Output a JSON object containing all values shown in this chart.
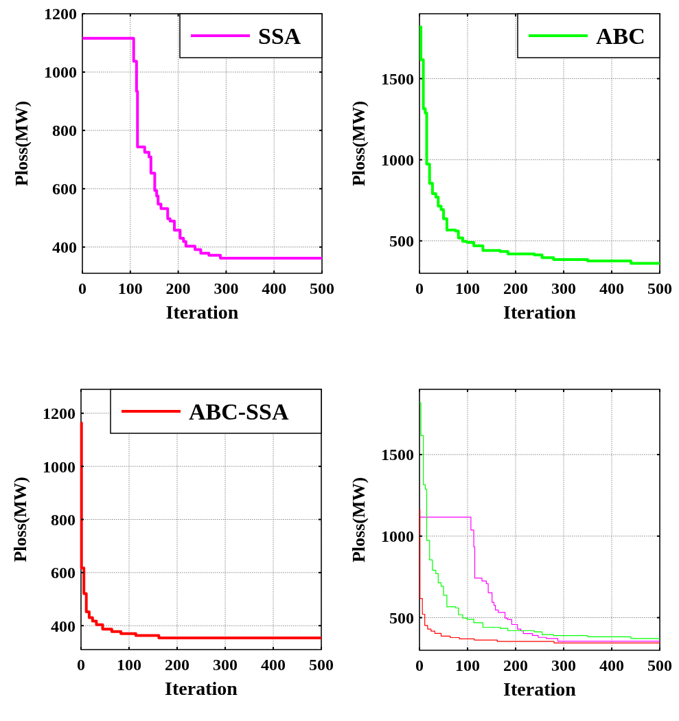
{
  "chart_data": [
    {
      "type": "step",
      "xlabel": "Iteration",
      "ylabel": "Ploss(MW)",
      "xlim": [
        0,
        500
      ],
      "ylim": [
        310,
        1200
      ],
      "xticks": [
        0,
        100,
        200,
        300,
        400,
        500
      ],
      "yticks": [
        400,
        600,
        800,
        1000,
        1200
      ],
      "grid": true,
      "legend": "top right",
      "series": [
        {
          "name": "SSA",
          "color": "#ff00ff",
          "x": [
            0,
            107,
            113,
            115,
            115,
            130,
            139,
            143,
            151,
            155,
            158,
            164,
            178,
            183,
            192,
            204,
            211,
            216,
            226,
            235,
            247,
            264,
            288,
            500
          ],
          "values": [
            1116,
            1037,
            934,
            899,
            743,
            725,
            709,
            653,
            594,
            575,
            547,
            532,
            497,
            489,
            458,
            430,
            419,
            403,
            403,
            391,
            379,
            372,
            362,
            362
          ]
        }
      ]
    },
    {
      "type": "step",
      "xlabel": "Iteration",
      "ylabel": "Ploss(MW)",
      "xlim": [
        0,
        500
      ],
      "ylim": [
        300,
        1900
      ],
      "xticks": [
        0,
        100,
        200,
        300,
        400,
        500
      ],
      "yticks": [
        500,
        1000,
        1500
      ],
      "grid": true,
      "legend": "top right",
      "series": [
        {
          "name": "ABC",
          "color": "#00ff00",
          "x": [
            0,
            3,
            8,
            8,
            12,
            15,
            21,
            21,
            27,
            34,
            39,
            45,
            50,
            57,
            75,
            81,
            90,
            99,
            113,
            132,
            168,
            184,
            239,
            255,
            279,
            350,
            440,
            500
          ],
          "values": [
            1819,
            1616,
            1500,
            1315,
            1288,
            973,
            945,
            854,
            791,
            770,
            714,
            693,
            637,
            567,
            560,
            518,
            497,
            490,
            469,
            441,
            434,
            420,
            413,
            396,
            385,
            376,
            361,
            361
          ]
        }
      ]
    },
    {
      "type": "step",
      "xlabel": "Iteration",
      "ylabel": "Ploss(MW)",
      "xlim": [
        0,
        500
      ],
      "ylim": [
        310,
        1290
      ],
      "xticks": [
        0,
        100,
        200,
        300,
        400,
        500
      ],
      "yticks": [
        400,
        600,
        800,
        1000,
        1200
      ],
      "grid": true,
      "legend": "top right",
      "series": [
        {
          "name": "ABC-SSA",
          "color": "#ff0000",
          "x": [
            0,
            1,
            6,
            6,
            11,
            17,
            24,
            32,
            45,
            64,
            83,
            114,
            162,
            500
          ],
          "values": [
            1164,
            617,
            600,
            521,
            452,
            430,
            417,
            404,
            387,
            378,
            370,
            363,
            354,
            354
          ]
        }
      ]
    },
    {
      "type": "step",
      "xlabel": "Iteration",
      "ylabel": "Ploss(MW)",
      "xlim": [
        0,
        500
      ],
      "ylim": [
        300,
        1900
      ],
      "xticks": [
        0,
        100,
        200,
        300,
        400,
        500
      ],
      "yticks": [
        500,
        1000,
        1500
      ],
      "grid": true,
      "series": [
        {
          "color": "#ff00ff",
          "x": [
            0,
            107,
            113,
            115,
            115,
            130,
            139,
            143,
            151,
            155,
            158,
            164,
            178,
            183,
            192,
            204,
            211,
            216,
            226,
            235,
            247,
            264,
            288,
            500
          ],
          "values": [
            1116,
            1037,
            934,
            899,
            743,
            725,
            709,
            653,
            594,
            575,
            547,
            532,
            497,
            489,
            458,
            430,
            419,
            403,
            403,
            391,
            379,
            372,
            355,
            355
          ]
        },
        {
          "color": "#00ff00",
          "x": [
            0,
            3,
            8,
            8,
            12,
            15,
            21,
            21,
            27,
            34,
            39,
            45,
            50,
            57,
            75,
            81,
            90,
            99,
            113,
            132,
            168,
            184,
            239,
            255,
            279,
            350,
            440,
            500
          ],
          "values": [
            1819,
            1616,
            1500,
            1315,
            1288,
            973,
            945,
            854,
            791,
            770,
            714,
            693,
            637,
            567,
            560,
            518,
            497,
            490,
            469,
            441,
            434,
            420,
            413,
            396,
            390,
            383,
            372,
            372
          ]
        },
        {
          "color": "#ff0000",
          "x": [
            0,
            1,
            6,
            6,
            11,
            17,
            24,
            32,
            45,
            64,
            83,
            114,
            162,
            280,
            500
          ],
          "values": [
            1164,
            617,
            600,
            521,
            452,
            430,
            417,
            404,
            387,
            378,
            370,
            363,
            354,
            345,
            345
          ]
        }
      ]
    }
  ]
}
